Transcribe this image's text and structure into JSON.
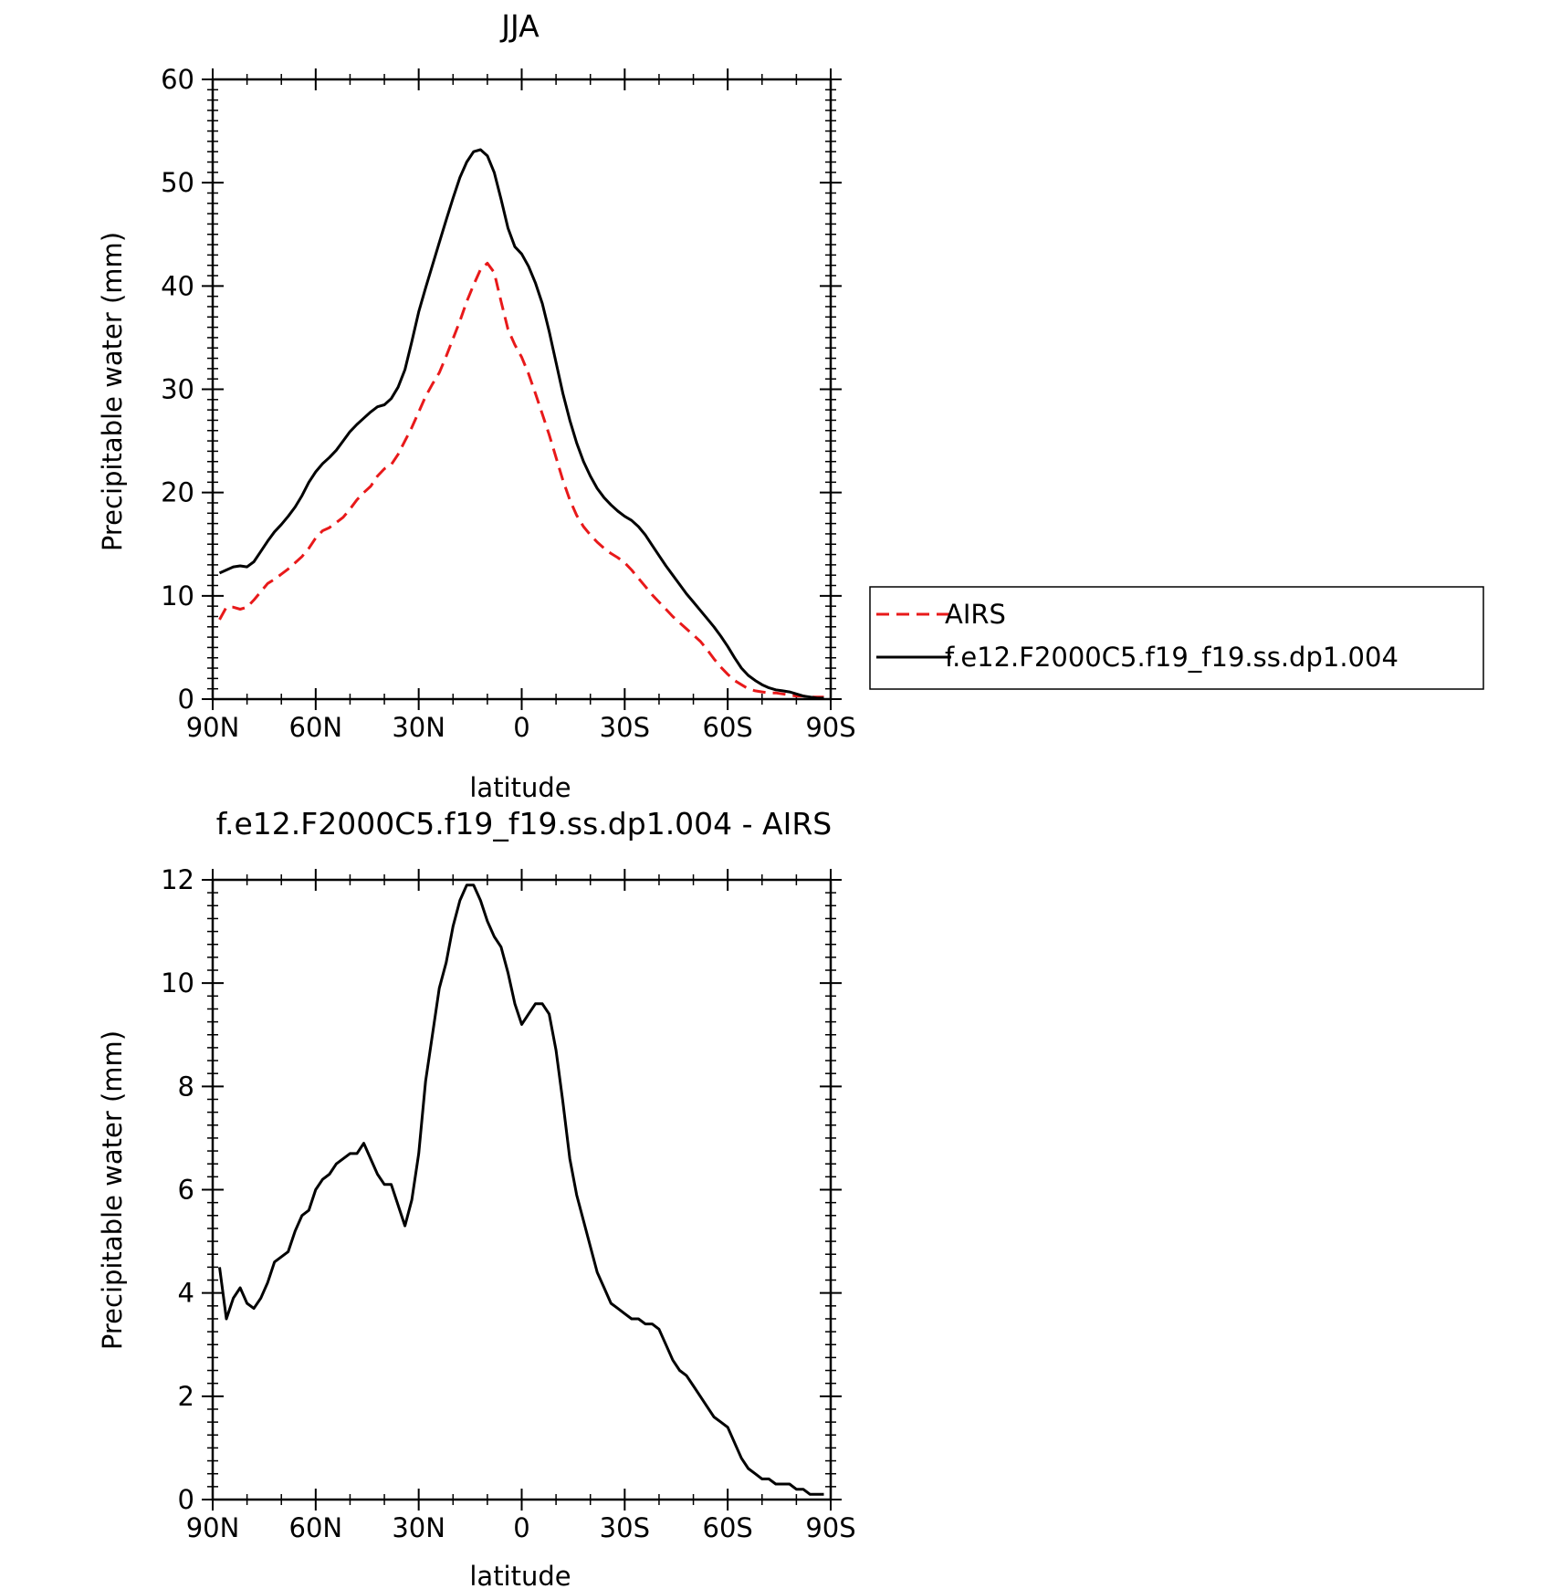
{
  "chart_data": [
    {
      "type": "line",
      "title": "JJA",
      "xlabel": "latitude",
      "ylabel": "Precipitable water (mm)",
      "xlim": [
        90,
        -90
      ],
      "ylim": [
        0,
        60
      ],
      "yticks": [
        0,
        10,
        20,
        30,
        40,
        50,
        60
      ],
      "xticks": [
        90,
        60,
        30,
        0,
        -30,
        -60,
        -90
      ],
      "xtick_labels": [
        "90N",
        "60N",
        "30N",
        "0",
        "30S",
        "60S",
        "90S"
      ],
      "legend_position": "right-middle",
      "grid": false,
      "series": [
        {
          "name": "AIRS",
          "color": "#e8191a",
          "style": "dashed",
          "x": [
            88,
            86,
            84,
            82,
            80,
            78,
            76,
            74,
            72,
            70,
            68,
            66,
            64,
            62,
            60,
            58,
            56,
            54,
            52,
            50,
            48,
            46,
            44,
            42,
            40,
            38,
            36,
            34,
            32,
            30,
            28,
            26,
            24,
            22,
            20,
            18,
            16,
            14,
            12,
            10,
            8,
            6,
            4,
            2,
            0,
            -2,
            -4,
            -6,
            -8,
            -10,
            -12,
            -14,
            -16,
            -18,
            -20,
            -22,
            -24,
            -26,
            -28,
            -30,
            -32,
            -34,
            -36,
            -38,
            -40,
            -42,
            -44,
            -46,
            -48,
            -50,
            -52,
            -54,
            -56,
            -58,
            -60,
            -62,
            -64,
            -66,
            -68,
            -70,
            -72,
            -74,
            -76,
            -78,
            -80,
            -82,
            -84,
            -86,
            -88
          ],
          "y": [
            7.7,
            8.9,
            8.9,
            8.7,
            8.9,
            9.6,
            10.4,
            11.2,
            11.6,
            12.1,
            12.6,
            13.2,
            13.8,
            14.6,
            15.6,
            16.3,
            16.6,
            17.1,
            17.6,
            18.4,
            19.3,
            20.0,
            20.6,
            21.6,
            22.3,
            22.7,
            23.7,
            25.0,
            26.3,
            27.8,
            29.3,
            30.5,
            31.6,
            33.2,
            34.9,
            36.6,
            38.5,
            40.1,
            41.6,
            42.2,
            41.3,
            38.5,
            35.8,
            34.3,
            33.1,
            31.5,
            29.6,
            27.6,
            25.6,
            23.4,
            21.2,
            19.3,
            17.8,
            16.7,
            15.9,
            15.2,
            14.6,
            14.1,
            13.7,
            13.2,
            12.5,
            11.7,
            10.9,
            10.1,
            9.4,
            8.7,
            8.0,
            7.4,
            6.8,
            6.2,
            5.6,
            4.8,
            3.9,
            3.1,
            2.4,
            1.8,
            1.4,
            1.0,
            0.8,
            0.7,
            0.6,
            0.6,
            0.5,
            0.4,
            0.3,
            0.3,
            0.2,
            0.2,
            0.2
          ]
        },
        {
          "name": "f.e12.F2000C5.f19_f19.ss.dp1.004",
          "color": "#000000",
          "style": "solid",
          "x": [
            88,
            86,
            84,
            82,
            80,
            78,
            76,
            74,
            72,
            70,
            68,
            66,
            64,
            62,
            60,
            58,
            56,
            54,
            52,
            50,
            48,
            46,
            44,
            42,
            40,
            38,
            36,
            34,
            32,
            30,
            28,
            26,
            24,
            22,
            20,
            18,
            16,
            14,
            12,
            10,
            8,
            6,
            4,
            2,
            0,
            -2,
            -4,
            -6,
            -8,
            -10,
            -12,
            -14,
            -16,
            -18,
            -20,
            -22,
            -24,
            -26,
            -28,
            -30,
            -32,
            -34,
            -36,
            -38,
            -40,
            -42,
            -44,
            -46,
            -48,
            -50,
            -52,
            -54,
            -56,
            -58,
            -60,
            -62,
            -64,
            -66,
            -68,
            -70,
            -72,
            -74,
            -76,
            -78,
            -80,
            -82,
            -84,
            -86,
            -88
          ],
          "y": [
            12.2,
            12.5,
            12.8,
            12.9,
            12.8,
            13.3,
            14.3,
            15.3,
            16.2,
            16.9,
            17.7,
            18.6,
            19.7,
            21.0,
            22.0,
            22.8,
            23.4,
            24.1,
            25.0,
            25.9,
            26.6,
            27.2,
            27.8,
            28.3,
            28.5,
            29.1,
            30.2,
            31.9,
            34.6,
            37.5,
            39.8,
            42.0,
            44.2,
            46.4,
            48.5,
            50.5,
            52.0,
            53.0,
            53.2,
            52.6,
            51.0,
            48.4,
            45.6,
            43.8,
            43.1,
            41.9,
            40.3,
            38.3,
            35.6,
            32.6,
            29.6,
            27.0,
            24.8,
            23.0,
            21.6,
            20.4,
            19.5,
            18.8,
            18.2,
            17.7,
            17.3,
            16.7,
            15.9,
            14.9,
            13.9,
            12.9,
            12.0,
            11.1,
            10.2,
            9.4,
            8.6,
            7.8,
            7.0,
            6.1,
            5.1,
            4.0,
            3.0,
            2.3,
            1.8,
            1.4,
            1.1,
            0.9,
            0.8,
            0.7,
            0.5,
            0.3,
            0.2,
            0.1,
            0.1
          ]
        }
      ]
    },
    {
      "type": "line",
      "title": "f.e12.F2000C5.f19_f19.ss.dp1.004 - AIRS",
      "xlabel": "latitude",
      "ylabel": "Precipitable water (mm)",
      "xlim": [
        90,
        -90
      ],
      "ylim": [
        0,
        12
      ],
      "yticks": [
        0,
        2,
        4,
        6,
        8,
        10,
        12
      ],
      "xticks": [
        90,
        60,
        30,
        0,
        -30,
        -60,
        -90
      ],
      "xtick_labels": [
        "90N",
        "60N",
        "30N",
        "0",
        "30S",
        "60S",
        "90S"
      ],
      "grid": false,
      "series": [
        {
          "color": "#000000",
          "style": "solid",
          "x": [
            88,
            86,
            84,
            82,
            80,
            78,
            76,
            74,
            72,
            70,
            68,
            66,
            64,
            62,
            60,
            58,
            56,
            54,
            52,
            50,
            48,
            46,
            44,
            42,
            40,
            38,
            36,
            34,
            32,
            30,
            28,
            26,
            24,
            22,
            20,
            18,
            16,
            14,
            12,
            10,
            8,
            6,
            4,
            2,
            0,
            -2,
            -4,
            -6,
            -8,
            -10,
            -12,
            -14,
            -16,
            -18,
            -20,
            -22,
            -24,
            -26,
            -28,
            -30,
            -32,
            -34,
            -36,
            -38,
            -40,
            -42,
            -44,
            -46,
            -48,
            -50,
            -52,
            -54,
            -56,
            -58,
            -60,
            -62,
            -64,
            -66,
            -68,
            -70,
            -72,
            -74,
            -76,
            -78,
            -80,
            -82,
            -84,
            -86,
            -88
          ],
          "y": [
            4.5,
            3.5,
            3.9,
            4.1,
            3.8,
            3.7,
            3.9,
            4.2,
            4.6,
            4.7,
            4.8,
            5.2,
            5.5,
            5.6,
            6.0,
            6.2,
            6.3,
            6.5,
            6.6,
            6.7,
            6.7,
            6.9,
            6.6,
            6.3,
            6.1,
            6.1,
            5.7,
            5.3,
            5.8,
            6.7,
            8.1,
            9.0,
            9.9,
            10.4,
            11.1,
            11.6,
            11.9,
            11.9,
            11.6,
            11.2,
            10.9,
            10.7,
            10.2,
            9.6,
            9.2,
            9.4,
            9.6,
            9.6,
            9.4,
            8.7,
            7.7,
            6.6,
            5.9,
            5.4,
            4.9,
            4.4,
            4.1,
            3.8,
            3.7,
            3.6,
            3.5,
            3.5,
            3.4,
            3.4,
            3.3,
            3.0,
            2.7,
            2.5,
            2.4,
            2.2,
            2.0,
            1.8,
            1.6,
            1.5,
            1.4,
            1.1,
            0.8,
            0.6,
            0.5,
            0.4,
            0.4,
            0.3,
            0.3,
            0.3,
            0.2,
            0.2,
            0.1,
            0.1,
            0.1
          ]
        }
      ]
    }
  ]
}
